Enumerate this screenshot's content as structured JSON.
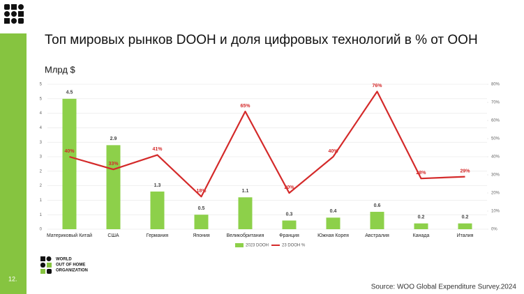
{
  "chart_data": {
    "type": "bar",
    "title": "Топ мировых рынков DOOH и доля цифровых технологий в % от OOH",
    "ylabel": "Млрд $",
    "categories": [
      "Материковый Китай",
      "США",
      "Германия",
      "Япония",
      "Великобритания",
      "Франция",
      "Южная Корея",
      "Австралия",
      "Канада",
      "Италия"
    ],
    "series": [
      {
        "name": "2023 DOOH",
        "color": "#8dd04a",
        "values": [
          4.5,
          2.9,
          1.3,
          0.5,
          1.1,
          0.3,
          0.4,
          0.6,
          0.2,
          0.2
        ]
      },
      {
        "name": "23 DOOH %",
        "color": "#d42a2a",
        "type": "line",
        "axis": "y2",
        "values": [
          40,
          33,
          41,
          18,
          65,
          20,
          40,
          76,
          28,
          29
        ],
        "value_labels": [
          "40%",
          "33%",
          "41%",
          "18%",
          "65%",
          "20%",
          "40%",
          "76%",
          "28%",
          "29%"
        ]
      }
    ],
    "ylim": [
      0,
      5
    ],
    "yticks": [
      0,
      {
        "value": 0.5,
        "label": "1"
      },
      1,
      {
        "value": 1.5,
        "label": "2"
      },
      2,
      {
        "value": 2.5,
        "label": "3"
      },
      3,
      {
        "value": 3.5,
        "label": "4"
      },
      4,
      {
        "value": 4.5,
        "label": "5"
      },
      5
    ],
    "y2lim": [
      0,
      80
    ],
    "y2ticks": [
      {
        "value": 0,
        "label": "0%"
      },
      {
        "value": 10,
        "label": "10%"
      },
      {
        "value": 20,
        "label": "20%"
      },
      {
        "value": 30,
        "label": "30%"
      },
      {
        "value": 40,
        "label": "40%"
      },
      {
        "value": 50,
        "label": "50%"
      },
      {
        "value": 60,
        "label": "60%"
      },
      {
        "value": 70,
        "label": "70%"
      },
      {
        "value": 80,
        "label": "80%"
      }
    ],
    "grid": true
  },
  "logo": [
    "WORLD",
    "OUT OF HOME",
    "ORGANIZATION"
  ],
  "page_number": "12.",
  "source": "Source: WOO Global Expenditure Survey.2024"
}
